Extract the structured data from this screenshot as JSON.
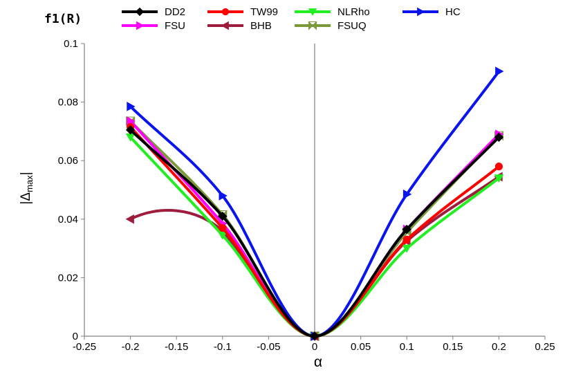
{
  "chart_data": {
    "type": "line",
    "title": "f1(R)",
    "xlabel": "α",
    "ylabel": "|Δmax|",
    "ylabel_main": "|Δ",
    "ylabel_sub": "max",
    "ylabel_end": "|",
    "xlim": [
      -0.25,
      0.25
    ],
    "ylim": [
      0,
      0.1
    ],
    "xticks": [
      -0.25,
      -0.2,
      -0.15,
      -0.1,
      -0.05,
      0,
      0.05,
      0.1,
      0.15,
      0.2,
      0.25
    ],
    "xtick_labels": [
      "-0.25",
      "-0.2",
      "-0.15",
      "-0.1",
      "-0.05",
      "0",
      "0.05",
      "0.1",
      "0.15",
      "0.2",
      "0.25"
    ],
    "yticks": [
      0,
      0.02,
      0.04,
      0.06,
      0.08,
      0.1
    ],
    "ytick_labels": [
      "0",
      "0.02",
      "0.04",
      "0.06",
      "0.08",
      "0.1"
    ],
    "grid": false,
    "legend_position": "top",
    "x": [
      -0.2,
      -0.1,
      0,
      0.1,
      0.2
    ],
    "series": [
      {
        "name": "DD2",
        "color": "#000000",
        "marker": "diamond",
        "values": [
          0.0705,
          0.041,
          0,
          0.0365,
          0.068
        ]
      },
      {
        "name": "TW99",
        "color": "#ff0000",
        "marker": "circle",
        "values": [
          0.0715,
          0.037,
          0,
          0.033,
          0.058
        ]
      },
      {
        "name": "NLRho",
        "color": "#22ee22",
        "marker": "triangle-down",
        "values": [
          0.068,
          0.0345,
          0,
          0.03,
          0.054
        ]
      },
      {
        "name": "HC",
        "color": "#0a14ee",
        "marker": "triangle-right",
        "values": [
          0.0785,
          0.048,
          0,
          0.0485,
          0.0905
        ]
      },
      {
        "name": "FSU",
        "color": "#ff00ff",
        "marker": "triangle-right",
        "values": [
          0.0735,
          0.0385,
          0,
          0.0365,
          0.069
        ]
      },
      {
        "name": "BHB",
        "color": "#a01c3c",
        "marker": "triangle-left",
        "values": [
          0.04,
          0.036,
          0,
          0.0325,
          0.0545
        ]
      },
      {
        "name": "FSUQ",
        "color": "#7a9a3a",
        "marker": "bowtie",
        "values": [
          0.0735,
          0.0415,
          0,
          0.0355,
          0.0685
        ]
      }
    ]
  }
}
